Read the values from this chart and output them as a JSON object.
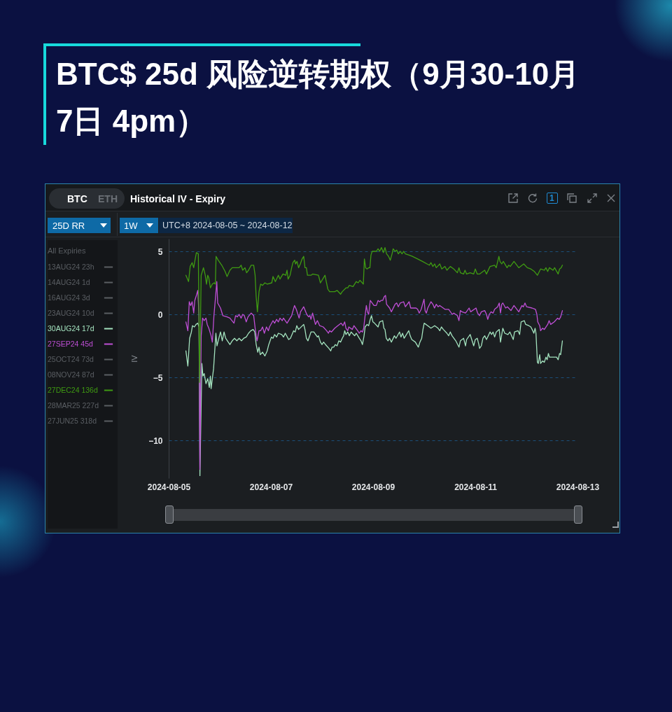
{
  "chart_data": {
    "type": "line",
    "title": "BTC$ 25d 风险逆转期权（9月30-10月7日 4pm）",
    "subtitle": "Historical IV - Expiry",
    "annotations": [
      "BTC",
      "ETH",
      "1",
      "25D RR",
      "1W",
      "UTC+8 2024-08-05 ~ 2024-08-12"
    ],
    "ylabel": "IV",
    "legend_title": "All Expiries",
    "legend": "left",
    "grid": "y",
    "xlim": [
      "2024-08-05",
      "2024-08-13"
    ],
    "xticks": [
      "2024-08-05",
      "2024-08-07",
      "2024-08-09",
      "2024-08-11",
      "2024-08-13"
    ],
    "ylim": [
      -13,
      6
    ],
    "yticks": [
      5,
      0,
      -5,
      -10
    ],
    "series": [
      {
        "name": "13AUG24 23h",
        "color": "#5a5e63"
      },
      {
        "name": "14AUG24 1d",
        "color": "#5a5e63"
      },
      {
        "name": "16AUG24 3d",
        "color": "#5a5e63"
      },
      {
        "name": "23AUG24 10d",
        "color": "#5a5e63"
      },
      {
        "name": "30AUG24 17d",
        "color": "#a4e3bf",
        "x": [
          "2024-08-05T08:05",
          "2024-08-05T09:00",
          "2024-08-05T09:50",
          "2024-08-05T10:40",
          "2024-08-05T11:10",
          "2024-08-05T12:05",
          "2024-08-05T12:50",
          "2024-08-05T13:40",
          "2024-08-05T14:15",
          "2024-08-05T14:40",
          "2024-08-05T15:35",
          "2024-08-05T16:05",
          "2024-08-05T16:40",
          "2024-08-05T17:30",
          "2024-08-05T18:20",
          "2024-08-05T19:05",
          "2024-08-05T19:35",
          "2024-08-05T19:55",
          "2024-08-05T20:30",
          "2024-08-05T21:05",
          "2024-08-05T21:35",
          "2024-08-05T22:10",
          "2024-08-05T22:40",
          "2024-08-05T23:15",
          "2024-08-06T00:20",
          "2024-08-06T01:10",
          "2024-08-06T02:00",
          "2024-08-06T02:45",
          "2024-08-06T04:45",
          "2024-08-06T05:50",
          "2024-08-06T06:55",
          "2024-08-06T08:00",
          "2024-08-06T09:05",
          "2024-08-06T10:10",
          "2024-08-06T11:15",
          "2024-08-06T12:25",
          "2024-08-06T13:30",
          "2024-08-06T14:35",
          "2024-08-06T15:40",
          "2024-08-06T16:25",
          "2024-08-06T17:05",
          "2024-08-06T17:50",
          "2024-08-06T18:25",
          "2024-08-06T19:00",
          "2024-08-06T20:05",
          "2024-08-06T21:10",
          "2024-08-06T22:15",
          "2024-08-06T23:00",
          "2024-08-07T00:15",
          "2024-08-07T01:00",
          "2024-08-07T01:45",
          "2024-08-07T02:40",
          "2024-08-07T03:30",
          "2024-08-07T05:05",
          "2024-08-07T05:55",
          "2024-08-07T06:45",
          "2024-08-07T08:20",
          "2024-08-07T09:10",
          "2024-08-07T10:40",
          "2024-08-07T11:25",
          "2024-08-07T12:10",
          "2024-08-07T13:00",
          "2024-08-07T15:25",
          "2024-08-07T16:00",
          "2024-08-07T16:40",
          "2024-08-07T17:25",
          "2024-08-07T18:50",
          "2024-08-07T20:10",
          "2024-08-07T21:50",
          "2024-08-07T22:20",
          "2024-08-07T23:15",
          "2024-08-08T00:00",
          "2024-08-08T00:45",
          "2024-08-08T01:40",
          "2024-08-08T03:15",
          "2024-08-08T04:05",
          "2024-08-08T04:45",
          "2024-08-08T05:30",
          "2024-08-08T06:15",
          "2024-08-08T07:05",
          "2024-08-08T07:55",
          "2024-08-08T08:45",
          "2024-08-08T09:30",
          "2024-08-08T10:10",
          "2024-08-08T10:40",
          "2024-08-08T11:15",
          "2024-08-08T12:05",
          "2024-08-08T12:50",
          "2024-08-08T13:40",
          "2024-08-08T15:20",
          "2024-08-08T16:05",
          "2024-08-08T17:30",
          "2024-08-08T18:20",
          "2024-08-08T19:00",
          "2024-08-08T19:45",
          "2024-08-08T20:15",
          "2024-08-08T21:10",
          "2024-08-08T21:55",
          "2024-08-08T22:40",
          "2024-08-08T23:15",
          "2024-08-08T23:55",
          "2024-08-09T00:40",
          "2024-08-09T02:20",
          "2024-08-09T03:05",
          "2024-08-09T04:30",
          "2024-08-09T05:05",
          "2024-08-09T05:35",
          "2024-08-09T06:10",
          "2024-08-09T07:00",
          "2024-08-09T07:45",
          "2024-08-09T08:35",
          "2024-08-09T10:00",
          "2024-08-09T10:45",
          "2024-08-09T12:25",
          "2024-08-09T13:05",
          "2024-08-09T13:50",
          "2024-08-09T14:35",
          "2024-08-09T16:45",
          "2024-08-09T17:25",
          "2024-08-09T18:10",
          "2024-08-09T19:50",
          "2024-08-09T21:15",
          "2024-08-09T22:00",
          "2024-08-09T22:50",
          "2024-08-09T23:25",
          "2024-08-10T00:00",
          "2024-08-10T01:40",
          "2024-08-10T03:10",
          "2024-08-10T04:55",
          "2024-08-10T06:30",
          "2024-08-10T07:20",
          "2024-08-10T08:05",
          "2024-08-10T09:00",
          "2024-08-10T10:40",
          "2024-08-10T11:30",
          "2024-08-10T12:15",
          "2024-08-10T13:05",
          "2024-08-10T14:50",
          "2024-08-10T16:20",
          "2024-08-10T17:00",
          "2024-08-10T18:30",
          "2024-08-10T19:25",
          "2024-08-10T19:55",
          "2024-08-10T21:35",
          "2024-08-10T22:30",
          "2024-08-10T23:15",
          "2024-08-11T00:00",
          "2024-08-11T00:55",
          "2024-08-11T01:40",
          "2024-08-11T02:00",
          "2024-08-11T02:50",
          "2024-08-11T03:35",
          "2024-08-11T04:25",
          "2024-08-11T05:15",
          "2024-08-11T06:55",
          "2024-08-11T07:40",
          "2024-08-11T08:20",
          "2024-08-11T09:05",
          "2024-08-11T09:50",
          "2024-08-11T11:15",
          "2024-08-11T11:50",
          "2024-08-11T12:55",
          "2024-08-11T13:50",
          "2024-08-11T15:20",
          "2024-08-11T16:15",
          "2024-08-11T17:50",
          "2024-08-11T18:25",
          "2024-08-11T20:05",
          "2024-08-11T20:50",
          "2024-08-11T21:30",
          "2024-08-11T23:00",
          "2024-08-11T23:40",
          "2024-08-12T01:10",
          "2024-08-12T02:05",
          "2024-08-12T03:00",
          "2024-08-12T03:30",
          "2024-08-12T04:05",
          "2024-08-12T04:30",
          "2024-08-12T05:10",
          "2024-08-12T05:35",
          "2024-08-12T06:15",
          "2024-08-12T06:40",
          "2024-08-12T07:35",
          "2024-08-12T08:25",
          "2024-08-12T09:10",
          "2024-08-12T09:45",
          "2024-08-12T10:20",
          "2024-08-12T10:50",
          "2024-08-12T12:30",
          "2024-08-12T14:10",
          "2024-08-12T14:55",
          "2024-08-12T15:35",
          "2024-08-12T16:05",
          "2024-08-12T16:55"
        ],
        "values": [
          -2.9,
          -4.1,
          -1.9,
          -1.4,
          -0.9,
          -1.0,
          -0.8,
          -0.7,
          -1.0,
          -12.8,
          -3.9,
          -4.9,
          -4.7,
          -5.5,
          -5.1,
          -5.8,
          -4.9,
          -5.9,
          -5.1,
          -4.3,
          -3.0,
          -1.5,
          -2.5,
          -2.1,
          -1.4,
          -2.1,
          -1.4,
          -1.9,
          -2.4,
          -2.1,
          -1.9,
          -2.1,
          -1.9,
          -2.1,
          -1.9,
          -1.8,
          -1.5,
          -1.3,
          -1.2,
          -1.4,
          -2.4,
          -3.0,
          -2.6,
          -3.2,
          -3.0,
          -3.3,
          -2.9,
          -2.4,
          -1.8,
          -1.9,
          -1.6,
          -1.8,
          -1.5,
          -1.6,
          -1.8,
          -1.5,
          -2.0,
          -1.9,
          -1.3,
          -1.4,
          -0.9,
          -1.2,
          -0.8,
          -1.2,
          -1.9,
          -2.1,
          -1.4,
          -1.4,
          -1.8,
          -1.7,
          -2.2,
          -2.4,
          -2.2,
          -2.4,
          -2.7,
          -2.9,
          -2.6,
          -2.6,
          -2.4,
          -2.5,
          -2.1,
          -2.2,
          -1.9,
          -1.7,
          -1.3,
          -1.6,
          -1.4,
          -1.7,
          -1.4,
          -1.7,
          -1.5,
          -1.9,
          -2.1,
          -2.4,
          -1.7,
          -1.0,
          -0.8,
          -0.9,
          -0.4,
          -0.1,
          -0.6,
          -0.7,
          -1.0,
          -0.6,
          -0.5,
          -1.1,
          -1.2,
          -1.9,
          -2.1,
          -1.9,
          -2.2,
          -1.7,
          -1.9,
          -1.4,
          -1.8,
          -1.5,
          -1.9,
          -1.3,
          -1.7,
          -2.0,
          -2.2,
          -2.6,
          -2.2,
          -1.9,
          -1.2,
          -0.7,
          -0.9,
          -1.1,
          -0.9,
          -1.1,
          -1.3,
          -1.0,
          -1.2,
          -1.5,
          -1.7,
          -1.4,
          -1.7,
          -2.1,
          -2.6,
          -2.1,
          -1.9,
          -2.5,
          -2.0,
          -1.6,
          -2.1,
          -2.5,
          -2.0,
          -1.9,
          -2.4,
          -2.7,
          -2.5,
          -1.9,
          -1.7,
          -2.0,
          -1.4,
          -1.6,
          -1.4,
          -1.8,
          -1.4,
          -1.2,
          -2.2,
          -1.1,
          -1.5,
          -1.6,
          -1.4,
          -2.0,
          -1.4,
          -1.3,
          -1.6,
          -0.6,
          -0.5,
          -0.8,
          -0.9,
          -1.0,
          -1.3,
          -1.5,
          -1.1,
          -1.5,
          -3.8,
          -3.9,
          -3.2,
          -3.9,
          -3.7,
          -3.8,
          -3.4,
          -3.6,
          -3.1,
          -3.4,
          -3.4,
          -3.4,
          -3.6,
          -3.1,
          -3.2,
          -2.1
        ]
      },
      {
        "name": "27SEP24 45d",
        "color": "#bf4fd6",
        "x": [
          "2024-08-05T08:05",
          "2024-08-05T09:00",
          "2024-08-05T09:40",
          "2024-08-05T10:20",
          "2024-08-05T11:00",
          "2024-08-05T11:45",
          "2024-08-05T12:15",
          "2024-08-05T13:00",
          "2024-08-05T13:40",
          "2024-08-05T14:15",
          "2024-08-05T14:40",
          "2024-08-05T15:15",
          "2024-08-05T15:55",
          "2024-08-05T16:40",
          "2024-08-05T17:30",
          "2024-08-05T18:05",
          "2024-08-05T18:50",
          "2024-08-05T19:55",
          "2024-08-05T20:30",
          "2024-08-05T21:15",
          "2024-08-05T21:55",
          "2024-08-05T22:35",
          "2024-08-05T23:00",
          "2024-08-06T00:20",
          "2024-08-06T01:25",
          "2024-08-06T03:25",
          "2024-08-06T04:45",
          "2024-08-06T06:40",
          "2024-08-06T07:25",
          "2024-08-06T08:15",
          "2024-08-06T09:05",
          "2024-08-06T10:00",
          "2024-08-06T10:45",
          "2024-08-06T11:30",
          "2024-08-06T12:25",
          "2024-08-06T13:15",
          "2024-08-06T14:45",
          "2024-08-06T15:55",
          "2024-08-06T16:45",
          "2024-08-06T17:30",
          "2024-08-06T18:25",
          "2024-08-06T19:10",
          "2024-08-06T20:05",
          "2024-08-06T20:55",
          "2024-08-06T21:55",
          "2024-08-06T22:50",
          "2024-08-06T23:20",
          "2024-08-07T01:00",
          "2024-08-07T01:45",
          "2024-08-07T02:40",
          "2024-08-07T03:30",
          "2024-08-07T04:15",
          "2024-08-07T05:20",
          "2024-08-07T05:55",
          "2024-08-07T07:35",
          "2024-08-07T08:40",
          "2024-08-07T09:45",
          "2024-08-07T11:05",
          "2024-08-07T11:55",
          "2024-08-07T13:15",
          "2024-08-07T13:55",
          "2024-08-07T15:25",
          "2024-08-07T16:50",
          "2024-08-07T17:45",
          "2024-08-07T18:20",
          "2024-08-07T18:50",
          "2024-08-07T19:35",
          "2024-08-07T20:10",
          "2024-08-07T20:55",
          "2024-08-07T21:50",
          "2024-08-07T22:55",
          "2024-08-08T00:35",
          "2024-08-08T02:10",
          "2024-08-08T03:00",
          "2024-08-08T03:35",
          "2024-08-08T04:25",
          "2024-08-08T06:00",
          "2024-08-08T07:25",
          "2024-08-08T09:00",
          "2024-08-08T09:50",
          "2024-08-08T10:40",
          "2024-08-08T11:15",
          "2024-08-08T12:05",
          "2024-08-08T12:35",
          "2024-08-08T14:15",
          "2024-08-08T15:00",
          "2024-08-08T16:45",
          "2024-08-08T17:30",
          "2024-08-08T18:20",
          "2024-08-08T19:00",
          "2024-08-08T19:35",
          "2024-08-08T20:15",
          "2024-08-08T20:50",
          "2024-08-08T21:20",
          "2024-08-08T21:55",
          "2024-08-08T22:40",
          "2024-08-08T23:35",
          "2024-08-09T00:25",
          "2024-08-09T01:30",
          "2024-08-09T02:20",
          "2024-08-09T03:05",
          "2024-08-09T03:45",
          "2024-08-09T04:30",
          "2024-08-09T05:15",
          "2024-08-09T05:50",
          "2024-08-09T06:20",
          "2024-08-09T07:45",
          "2024-08-09T08:35",
          "2024-08-09T10:20",
          "2024-08-09T11:05",
          "2024-08-09T11:50",
          "2024-08-09T12:45",
          "2024-08-09T14:20",
          "2024-08-09T15:10",
          "2024-08-09T16:55",
          "2024-08-09T17:40",
          "2024-08-09T20:10",
          "2024-08-09T20:55",
          "2024-08-09T21:40",
          "2024-08-09T22:35",
          "2024-08-09T23:55",
          "2024-08-10T00:25",
          "2024-08-10T01:00",
          "2024-08-10T01:40",
          "2024-08-10T03:10",
          "2024-08-10T04:05",
          "2024-08-10T04:50",
          "2024-08-10T05:40",
          "2024-08-10T06:30",
          "2024-08-10T07:20",
          "2024-08-10T09:45",
          "2024-08-10T11:30",
          "2024-08-10T13:10",
          "2024-08-10T13:55",
          "2024-08-10T15:35",
          "2024-08-10T16:20",
          "2024-08-10T17:00",
          "2024-08-10T17:45",
          "2024-08-10T19:25",
          "2024-08-10T21:05",
          "2024-08-10T21:50",
          "2024-08-11T00:20",
          "2024-08-11T01:05",
          "2024-08-11T02:00",
          "2024-08-11T02:50",
          "2024-08-11T04:25",
          "2024-08-11T05:15",
          "2024-08-11T05:50",
          "2024-08-11T06:35",
          "2024-08-11T07:25",
          "2024-08-11T08:20",
          "2024-08-11T09:05",
          "2024-08-11T10:30",
          "2024-08-11T11:15",
          "2024-08-11T11:50",
          "2024-08-11T12:25",
          "2024-08-11T12:55",
          "2024-08-11T14:15",
          "2024-08-11T15:05",
          "2024-08-11T16:45",
          "2024-08-11T18:10",
          "2024-08-11T20:25",
          "2024-08-11T21:55",
          "2024-08-11T22:35",
          "2024-08-11T23:20",
          "2024-08-12T00:05",
          "2024-08-12T02:40",
          "2024-08-12T04:15",
          "2024-08-12T04:55",
          "2024-08-12T05:20",
          "2024-08-12T06:15",
          "2024-08-12T06:40",
          "2024-08-12T07:35",
          "2024-08-12T08:25",
          "2024-08-12T10:00",
          "2024-08-12T10:40",
          "2024-08-12T11:25",
          "2024-08-12T13:05",
          "2024-08-12T14:40",
          "2024-08-12T15:25",
          "2024-08-12T16:05",
          "2024-08-12T16:55"
        ],
        "values": [
          -0.6,
          -1.3,
          1.0,
          0.7,
          1.0,
          0.1,
          1.1,
          1.5,
          1.9,
          -0.1,
          -12.3,
          -1.7,
          -0.3,
          -0.5,
          -0.3,
          -0.8,
          -1.1,
          -1.7,
          -2.2,
          -0.1,
          1.2,
          2.6,
          0.9,
          0.5,
          -0.1,
          -0.2,
          -0.3,
          -0.7,
          -0.1,
          -0.2,
          0.0,
          -0.3,
          0.0,
          -0.1,
          -0.6,
          -0.2,
          0.1,
          -0.1,
          -1.3,
          -2.1,
          -1.3,
          -1.3,
          -1.0,
          -1.5,
          -1.0,
          -1.3,
          -1.0,
          -0.5,
          -0.7,
          -0.4,
          -0.6,
          -0.3,
          -0.5,
          -0.3,
          -0.7,
          -0.4,
          -0.1,
          0.7,
          0.4,
          -0.3,
          0.2,
          0.6,
          0.0,
          -0.2,
          -0.1,
          -0.4,
          0.1,
          -0.3,
          -0.8,
          -0.5,
          -0.9,
          -1.0,
          -1.3,
          -1.5,
          -1.3,
          -1.4,
          -1.1,
          -0.9,
          -0.7,
          -0.9,
          -0.6,
          -1.1,
          -1.3,
          -1.0,
          -1.2,
          -0.9,
          -1.3,
          -1.5,
          -1.3,
          -1.4,
          -1.1,
          -0.1,
          0.7,
          0.2,
          0.0,
          1.1,
          0.9,
          0.7,
          0.7,
          1.1,
          1.0,
          1.1,
          1.1,
          1.4,
          1.5,
          0.8,
          0.5,
          0.2,
          0.8,
          0.9,
          0.6,
          0.9,
          1.0,
          0.6,
          1.0,
          0.5,
          0.5,
          0.4,
          0.1,
          0.4,
          1.2,
          0.3,
          0.1,
          0.5,
          1.0,
          0.8,
          0.5,
          0.8,
          0.6,
          0.7,
          0.4,
          0.4,
          0.0,
          0.1,
          -0.1,
          -0.5,
          0.3,
          0.2,
          0.1,
          0.5,
          0.2,
          0.5,
          0.1,
          -0.1,
          0.2,
          0.3,
          0.0,
          -0.4,
          0.0,
          0.2,
          0.1,
          0.4,
          0.6,
          0.9,
          0.1,
          0.8,
          0.9,
          0.5,
          0.6,
          0.3,
          0.7,
          0.2,
          0.7,
          0.6,
          0.9,
          0.6,
          0.5,
          0.4,
          0.0,
          -0.6,
          -0.9,
          -1.3,
          -1.1,
          -1.2,
          -0.8,
          -0.5,
          -0.8,
          -0.6,
          -0.3,
          -0.4,
          -0.2,
          0.3
        ]
      },
      {
        "name": "25OCT24 73d",
        "color": "#5a5e63"
      },
      {
        "name": "08NOV24 87d",
        "color": "#5a5e63"
      },
      {
        "name": "27DEC24 136d",
        "color": "#3f9b12",
        "x": [
          "2024-08-05T08:05",
          "2024-08-05T09:20",
          "2024-08-05T10:05",
          "2024-08-05T11:00",
          "2024-08-05T11:45",
          "2024-08-05T12:15",
          "2024-08-05T13:00",
          "2024-08-05T13:55",
          "2024-08-05T14:30",
          "2024-08-05T15:15",
          "2024-08-05T16:20",
          "2024-08-05T17:10",
          "2024-08-05T17:45",
          "2024-08-05T18:20",
          "2024-08-05T18:50",
          "2024-08-05T19:35",
          "2024-08-05T20:30",
          "2024-08-05T21:20",
          "2024-08-05T21:55",
          "2024-08-05T22:15",
          "2024-08-05T23:15",
          "2024-08-06T00:55",
          "2024-08-06T02:30",
          "2024-08-06T03:25",
          "2024-08-06T04:45",
          "2024-08-06T05:50",
          "2024-08-06T07:25",
          "2024-08-06T09:05",
          "2024-08-06T10:00",
          "2024-08-06T10:45",
          "2024-08-06T11:50",
          "2024-08-06T12:35",
          "2024-08-06T13:30",
          "2024-08-06T14:45",
          "2024-08-06T15:55",
          "2024-08-06T16:35",
          "2024-08-06T17:05",
          "2024-08-06T17:40",
          "2024-08-06T18:25",
          "2024-08-06T19:10",
          "2024-08-06T20:05",
          "2024-08-06T21:10",
          "2024-08-06T22:15",
          "2024-08-07T00:25",
          "2024-08-07T01:00",
          "2024-08-07T02:05",
          "2024-08-07T03:30",
          "2024-08-07T04:15",
          "2024-08-07T05:40",
          "2024-08-07T07:00",
          "2024-08-07T07:35",
          "2024-08-07T08:05",
          "2024-08-07T09:00",
          "2024-08-07T09:45",
          "2024-08-07T10:20",
          "2024-08-07T11:10",
          "2024-08-07T11:35",
          "2024-08-07T12:15",
          "2024-08-07T13:00",
          "2024-08-07T13:50",
          "2024-08-07T14:40",
          "2024-08-07T15:25",
          "2024-08-07T16:00",
          "2024-08-07T16:40",
          "2024-08-07T17:10",
          "2024-08-07T18:50",
          "2024-08-07T19:35",
          "2024-08-07T22:20",
          "2024-08-07T23:15",
          "2024-08-08T00:00",
          "2024-08-08T01:25",
          "2024-08-08T02:00",
          "2024-08-08T02:45",
          "2024-08-08T03:35",
          "2024-08-08T06:00",
          "2024-08-08T07:05",
          "2024-08-08T08:45",
          "2024-08-08T09:30",
          "2024-08-08T11:15",
          "2024-08-08T12:05",
          "2024-08-08T12:50",
          "2024-08-08T14:35",
          "2024-08-08T16:05",
          "2024-08-08T17:00",
          "2024-08-08T17:50",
          "2024-08-08T19:25",
          "2024-08-08T19:55",
          "2024-08-08T20:30",
          "2024-08-08T21:10",
          "2024-08-08T21:55",
          "2024-08-08T22:30",
          "2024-08-08T23:00",
          "2024-08-08T23:35",
          "2024-08-09T00:20",
          "2024-08-09T01:30",
          "2024-08-09T02:20",
          "2024-08-09T03:05",
          "2024-08-09T03:55",
          "2024-08-09T04:50",
          "2024-08-09T05:35",
          "2024-08-09T06:20",
          "2024-08-09T07:15",
          "2024-08-09T08:05",
          "2024-08-09T08:55",
          "2024-08-09T09:25",
          "2024-08-09T10:20",
          "2024-08-09T11:05",
          "2024-08-09T11:50",
          "2024-08-09T12:45",
          "2024-08-09T13:35",
          "2024-08-09T14:20",
          "2024-08-09T15:10",
          "2024-08-09T16:55",
          "2024-08-09T18:25",
          "2024-08-09T20:55",
          "2024-08-09T23:10",
          "2024-08-10T01:20",
          "2024-08-10T02:25",
          "2024-08-10T03:10",
          "2024-08-10T04:05",
          "2024-08-10T04:55",
          "2024-08-10T05:40",
          "2024-08-10T07:20",
          "2024-08-10T08:15",
          "2024-08-10T09:45",
          "2024-08-10T10:40",
          "2024-08-10T12:15",
          "2024-08-10T13:55",
          "2024-08-10T15:35",
          "2024-08-10T16:20",
          "2024-08-10T17:00",
          "2024-08-10T18:30",
          "2024-08-10T19:10",
          "2024-08-10T19:55",
          "2024-08-10T21:35",
          "2024-08-10T23:15",
          "2024-08-11T00:00",
          "2024-08-11T00:55",
          "2024-08-11T02:00",
          "2024-08-11T04:25",
          "2024-08-11T05:15",
          "2024-08-11T06:55",
          "2024-08-11T09:05",
          "2024-08-11T09:50",
          "2024-08-11T11:05",
          "2024-08-11T11:35",
          "2024-08-11T12:25",
          "2024-08-11T13:10",
          "2024-08-11T14:55",
          "2024-08-11T15:40",
          "2024-08-11T16:25",
          "2024-08-11T18:10",
          "2024-08-11T20:25",
          "2024-08-11T22:45",
          "2024-08-12T00:25",
          "2024-08-12T02:05",
          "2024-08-12T03:45",
          "2024-08-12T05:10",
          "2024-08-12T06:40",
          "2024-08-12T08:25",
          "2024-08-12T09:10",
          "2024-08-12T10:00",
          "2024-08-12T10:50",
          "2024-08-12T12:30",
          "2024-08-12T13:15",
          "2024-08-12T14:55",
          "2024-08-12T15:35",
          "2024-08-12T16:20",
          "2024-08-12T16:55"
        ],
        "values": [
          3.1,
          2.6,
          3.8,
          4.1,
          3.7,
          4.2,
          4.9,
          4.8,
          -5.4,
          3.1,
          3.7,
          3.1,
          2.4,
          3.1,
          2.9,
          2.1,
          2.4,
          2.5,
          2.4,
          4.6,
          4.3,
          3.9,
          3.4,
          3.0,
          3.5,
          3.7,
          3.7,
          3.7,
          3.9,
          3.5,
          3.7,
          3.3,
          3.5,
          3.9,
          3.9,
          3.1,
          1.4,
          0.2,
          1.8,
          2.4,
          2.3,
          2.5,
          2.4,
          2.5,
          3.0,
          2.6,
          3.1,
          2.8,
          3.2,
          3.1,
          3.5,
          2.8,
          3.1,
          3.7,
          4.1,
          4.3,
          4.0,
          4.2,
          3.7,
          4.0,
          4.4,
          4.6,
          3.7,
          3.7,
          3.1,
          3.1,
          3.2,
          3.1,
          2.5,
          2.7,
          3.1,
          2.6,
          2.0,
          1.8,
          1.8,
          1.9,
          1.6,
          1.8,
          2.1,
          2.1,
          2.3,
          2.2,
          2.6,
          2.5,
          2.7,
          2.4,
          4.4,
          3.7,
          3.6,
          3.7,
          3.7,
          4.7,
          5.0,
          5.0,
          5.0,
          5.2,
          5.0,
          5.3,
          4.9,
          5.3,
          4.8,
          4.6,
          4.3,
          4.8,
          5.2,
          5.0,
          5.1,
          4.8,
          5.0,
          4.8,
          5.0,
          4.8,
          4.7,
          4.6,
          4.4,
          4.2,
          4.0,
          3.9,
          4.1,
          3.8,
          4.0,
          3.7,
          4.0,
          3.6,
          3.8,
          3.5,
          3.8,
          3.6,
          3.3,
          3.7,
          3.3,
          3.2,
          3.5,
          3.2,
          3.3,
          3.2,
          3.6,
          3.2,
          3.2,
          3.5,
          3.2,
          3.8,
          3.9,
          3.7,
          4.6,
          4.2,
          4.0,
          4.2,
          3.7,
          3.9,
          3.8,
          4.2,
          3.7,
          4.0,
          3.7,
          3.6,
          3.4,
          3.1,
          3.6,
          3.5,
          3.7,
          3.4,
          3.7,
          3.5,
          3.7,
          3.2,
          3.6,
          3.7,
          3.9
        ]
      },
      {
        "name": "28MAR25 227d",
        "color": "#5a5e63"
      },
      {
        "name": "27JUN25 318d",
        "color": "#5a5e63"
      }
    ]
  }
}
